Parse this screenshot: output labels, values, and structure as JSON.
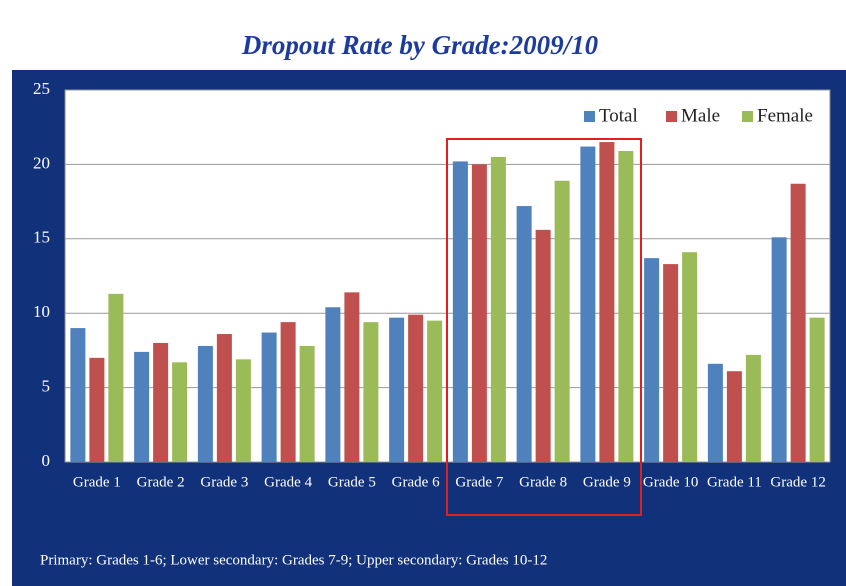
{
  "chart_data": {
    "type": "bar",
    "title": "Dropout Rate by Grade:2009/10",
    "categories": [
      "Grade 1",
      "Grade 2",
      "Grade 3",
      "Grade 4",
      "Grade 5",
      "Grade 6",
      "Grade 7",
      "Grade 8",
      "Grade 9",
      "Grade 10",
      "Grade 11",
      "Grade 12"
    ],
    "series": [
      {
        "name": "Total",
        "color": "#4f81bd",
        "values": [
          9.0,
          7.4,
          7.8,
          8.7,
          10.4,
          9.7,
          20.2,
          17.2,
          21.2,
          13.7,
          6.6,
          15.1
        ]
      },
      {
        "name": "Male",
        "color": "#c0504d",
        "values": [
          7.0,
          8.0,
          8.6,
          9.4,
          11.4,
          9.9,
          20.0,
          15.6,
          21.5,
          13.3,
          6.1,
          18.7
        ]
      },
      {
        "name": "Female",
        "color": "#9bbb59",
        "values": [
          11.3,
          6.7,
          6.9,
          7.8,
          9.4,
          9.5,
          20.5,
          18.9,
          20.9,
          14.1,
          7.2,
          9.7
        ]
      }
    ],
    "ylim": [
      0,
      25
    ],
    "yticks": [
      0,
      5,
      10,
      15,
      20,
      25
    ],
    "grid": true,
    "legend": "top-right",
    "footnote": "Primary: Grades 1-6; Lower secondary: Grades 7-9; Upper secondary: Grades 10-12"
  }
}
